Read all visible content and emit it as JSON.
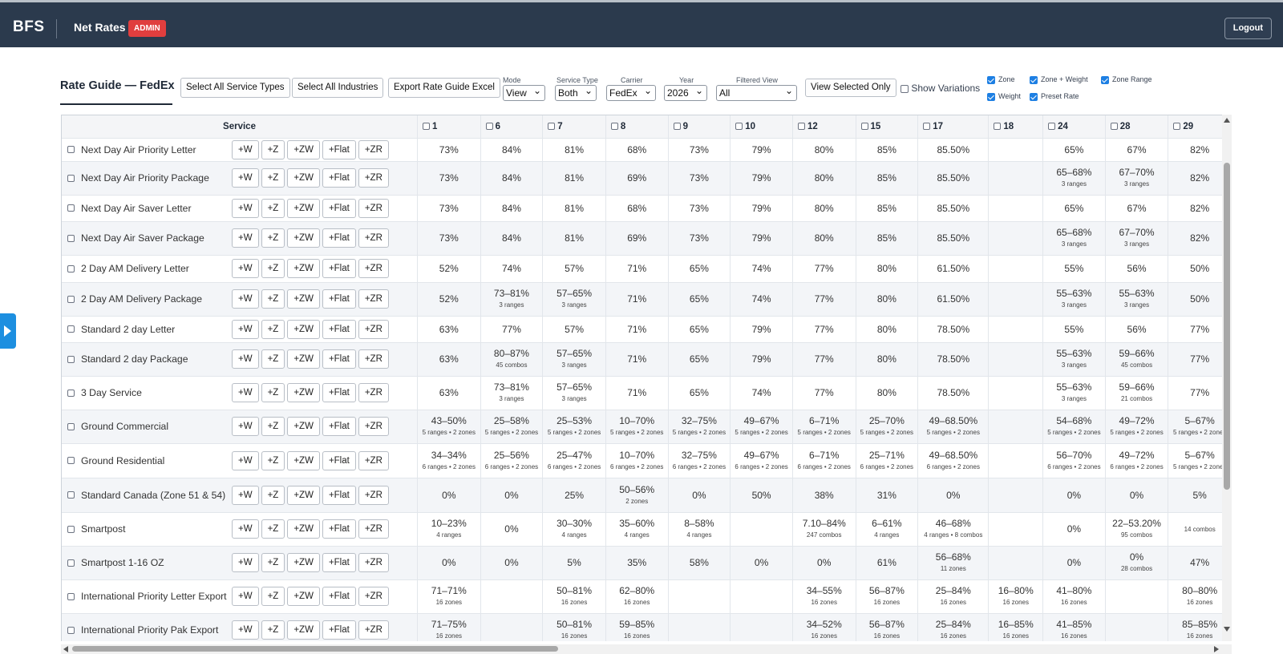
{
  "header": {
    "brand": "BFS",
    "title": "Net Rates",
    "badge": "ADMIN",
    "logout_label": "Logout"
  },
  "toolbar": {
    "title": "Rate Guide — FedEx",
    "select_all_services": "Select All Service Types",
    "select_all_industries": "Select All Industries",
    "export": "Export Rate Guide Excel",
    "mode_label": "Mode",
    "mode_value": "View",
    "service_type_label": "Service Type",
    "service_type_value": "Both",
    "carrier_label": "Carrier",
    "carrier_value": "FedEx",
    "year_label": "Year",
    "year_value": "2026",
    "filtered_view_label": "Filtered View",
    "filtered_view_value": "All",
    "view_selected": "View Selected Only",
    "show_variations": "Show Variations",
    "filters": [
      {
        "label": "Zone",
        "checked": true
      },
      {
        "label": "Zone + Weight",
        "checked": true
      },
      {
        "label": "Zone Range",
        "checked": true
      },
      {
        "label": "Weight",
        "checked": true
      },
      {
        "label": "Preset Rate",
        "checked": true
      }
    ]
  },
  "table": {
    "service_header": "Service",
    "row_buttons": [
      "+W",
      "+Z",
      "+ZW",
      "+Flat",
      "+ZR"
    ],
    "columns": [
      "1",
      "6",
      "7",
      "8",
      "9",
      "10",
      "12",
      "15",
      "17",
      "18",
      "24",
      "28",
      "29"
    ],
    "rows": [
      {
        "service": "Next Day Air Priority Letter",
        "cells": [
          [
            "73%",
            ""
          ],
          [
            "84%",
            ""
          ],
          [
            "81%",
            ""
          ],
          [
            "68%",
            ""
          ],
          [
            "73%",
            ""
          ],
          [
            "79%",
            ""
          ],
          [
            "80%",
            ""
          ],
          [
            "85%",
            ""
          ],
          [
            "85.50%",
            ""
          ],
          [
            "",
            ""
          ],
          [
            "65%",
            ""
          ],
          [
            "67%",
            ""
          ],
          [
            "82%",
            ""
          ]
        ]
      },
      {
        "service": "Next Day Air Priority Package",
        "cells": [
          [
            "73%",
            ""
          ],
          [
            "84%",
            ""
          ],
          [
            "81%",
            ""
          ],
          [
            "69%",
            ""
          ],
          [
            "73%",
            ""
          ],
          [
            "79%",
            ""
          ],
          [
            "80%",
            ""
          ],
          [
            "85%",
            ""
          ],
          [
            "85.50%",
            ""
          ],
          [
            "",
            ""
          ],
          [
            "65–68%",
            "3 ranges"
          ],
          [
            "67–70%",
            "3 ranges"
          ],
          [
            "82%",
            ""
          ]
        ]
      },
      {
        "service": "Next Day Air Saver Letter",
        "cells": [
          [
            "73%",
            ""
          ],
          [
            "84%",
            ""
          ],
          [
            "81%",
            ""
          ],
          [
            "68%",
            ""
          ],
          [
            "73%",
            ""
          ],
          [
            "79%",
            ""
          ],
          [
            "80%",
            ""
          ],
          [
            "85%",
            ""
          ],
          [
            "85.50%",
            ""
          ],
          [
            "",
            ""
          ],
          [
            "65%",
            ""
          ],
          [
            "67%",
            ""
          ],
          [
            "82%",
            ""
          ]
        ]
      },
      {
        "service": "Next Day Air Saver Package",
        "cells": [
          [
            "73%",
            ""
          ],
          [
            "84%",
            ""
          ],
          [
            "81%",
            ""
          ],
          [
            "69%",
            ""
          ],
          [
            "73%",
            ""
          ],
          [
            "79%",
            ""
          ],
          [
            "80%",
            ""
          ],
          [
            "85%",
            ""
          ],
          [
            "85.50%",
            ""
          ],
          [
            "",
            ""
          ],
          [
            "65–68%",
            "3 ranges"
          ],
          [
            "67–70%",
            "3 ranges"
          ],
          [
            "82%",
            ""
          ]
        ]
      },
      {
        "service": "2 Day AM Delivery Letter",
        "cells": [
          [
            "52%",
            ""
          ],
          [
            "74%",
            ""
          ],
          [
            "57%",
            ""
          ],
          [
            "71%",
            ""
          ],
          [
            "65%",
            ""
          ],
          [
            "74%",
            ""
          ],
          [
            "77%",
            ""
          ],
          [
            "80%",
            ""
          ],
          [
            "61.50%",
            ""
          ],
          [
            "",
            ""
          ],
          [
            "55%",
            ""
          ],
          [
            "56%",
            ""
          ],
          [
            "50%",
            ""
          ]
        ]
      },
      {
        "service": "2 Day AM Delivery Package",
        "cells": [
          [
            "52%",
            ""
          ],
          [
            "73–81%",
            "3 ranges"
          ],
          [
            "57–65%",
            "3 ranges"
          ],
          [
            "71%",
            ""
          ],
          [
            "65%",
            ""
          ],
          [
            "74%",
            ""
          ],
          [
            "77%",
            ""
          ],
          [
            "80%",
            ""
          ],
          [
            "61.50%",
            ""
          ],
          [
            "",
            ""
          ],
          [
            "55–63%",
            "3 ranges"
          ],
          [
            "55–63%",
            "3 ranges"
          ],
          [
            "50%",
            ""
          ]
        ]
      },
      {
        "service": "Standard 2 day Letter",
        "cells": [
          [
            "63%",
            ""
          ],
          [
            "77%",
            ""
          ],
          [
            "57%",
            ""
          ],
          [
            "71%",
            ""
          ],
          [
            "65%",
            ""
          ],
          [
            "79%",
            ""
          ],
          [
            "77%",
            ""
          ],
          [
            "80%",
            ""
          ],
          [
            "78.50%",
            ""
          ],
          [
            "",
            ""
          ],
          [
            "55%",
            ""
          ],
          [
            "56%",
            ""
          ],
          [
            "77%",
            ""
          ]
        ]
      },
      {
        "service": "Standard 2 day Package",
        "cells": [
          [
            "63%",
            ""
          ],
          [
            "80–87%",
            "45 combos"
          ],
          [
            "57–65%",
            "3 ranges"
          ],
          [
            "71%",
            ""
          ],
          [
            "65%",
            ""
          ],
          [
            "79%",
            ""
          ],
          [
            "77%",
            ""
          ],
          [
            "80%",
            ""
          ],
          [
            "78.50%",
            ""
          ],
          [
            "",
            ""
          ],
          [
            "55–63%",
            "3 ranges"
          ],
          [
            "59–66%",
            "45 combos"
          ],
          [
            "77%",
            ""
          ]
        ]
      },
      {
        "service": "3 Day Service",
        "cells": [
          [
            "63%",
            ""
          ],
          [
            "73–81%",
            "3 ranges"
          ],
          [
            "57–65%",
            "3 ranges"
          ],
          [
            "71%",
            ""
          ],
          [
            "65%",
            ""
          ],
          [
            "74%",
            ""
          ],
          [
            "77%",
            ""
          ],
          [
            "80%",
            ""
          ],
          [
            "78.50%",
            ""
          ],
          [
            "",
            ""
          ],
          [
            "55–63%",
            "3 ranges"
          ],
          [
            "59–66%",
            "21 combos"
          ],
          [
            "77%",
            ""
          ]
        ]
      },
      {
        "service": "Ground Commercial",
        "cells": [
          [
            "43–50%",
            "5 ranges • 2 zones"
          ],
          [
            "25–58%",
            "5 ranges • 2 zones"
          ],
          [
            "25–53%",
            "5 ranges • 2 zones"
          ],
          [
            "10–70%",
            "5 ranges • 2 zones"
          ],
          [
            "32–75%",
            "5 ranges • 2 zones"
          ],
          [
            "49–67%",
            "5 ranges • 2 zones"
          ],
          [
            "6–71%",
            "5 ranges • 2 zones"
          ],
          [
            "25–70%",
            "5 ranges • 2 zones"
          ],
          [
            "49–68.50%",
            "5 ranges • 2 zones"
          ],
          [
            "",
            ""
          ],
          [
            "54–68%",
            "5 ranges • 2 zones"
          ],
          [
            "49–72%",
            "5 ranges • 2 zones"
          ],
          [
            "5–67%",
            "5 ranges • 2 zones"
          ]
        ]
      },
      {
        "service": "Ground Residential",
        "cells": [
          [
            "34–34%",
            "6 ranges • 2 zones"
          ],
          [
            "25–56%",
            "6 ranges • 2 zones"
          ],
          [
            "25–47%",
            "6 ranges • 2 zones"
          ],
          [
            "10–70%",
            "6 ranges • 2 zones"
          ],
          [
            "32–75%",
            "6 ranges • 2 zones"
          ],
          [
            "49–67%",
            "6 ranges • 2 zones"
          ],
          [
            "6–71%",
            "6 ranges • 2 zones"
          ],
          [
            "25–71%",
            "6 ranges • 2 zones"
          ],
          [
            "49–68.50%",
            "6 ranges • 2 zones"
          ],
          [
            "",
            ""
          ],
          [
            "56–70%",
            "6 ranges • 2 zones"
          ],
          [
            "49–72%",
            "6 ranges • 2 zones"
          ],
          [
            "5–67%",
            "5 ranges • 2 zones"
          ]
        ]
      },
      {
        "service": "Standard Canada (Zone 51 & 54)",
        "cells": [
          [
            "0%",
            ""
          ],
          [
            "0%",
            ""
          ],
          [
            "25%",
            ""
          ],
          [
            "50–56%",
            "2 zones"
          ],
          [
            "0%",
            ""
          ],
          [
            "50%",
            ""
          ],
          [
            "38%",
            ""
          ],
          [
            "31%",
            ""
          ],
          [
            "0%",
            ""
          ],
          [
            "",
            ""
          ],
          [
            "0%",
            ""
          ],
          [
            "0%",
            ""
          ],
          [
            "5%",
            ""
          ]
        ]
      },
      {
        "service": "Smartpost",
        "cells": [
          [
            "10–23%",
            "4 ranges"
          ],
          [
            "0%",
            ""
          ],
          [
            "30–30%",
            "4 ranges"
          ],
          [
            "35–60%",
            "4 ranges"
          ],
          [
            "8–58%",
            "4 ranges"
          ],
          [
            "",
            ""
          ],
          [
            "7.10–84%",
            "247 combos"
          ],
          [
            "6–61%",
            "4 ranges"
          ],
          [
            "46–68%",
            "4 ranges • 8 combos"
          ],
          [
            "",
            ""
          ],
          [
            "0%",
            ""
          ],
          [
            "22–53.20%",
            "95 combos"
          ],
          [
            "",
            "14 combos"
          ]
        ]
      },
      {
        "service": "Smartpost 1-16 OZ",
        "cells": [
          [
            "0%",
            ""
          ],
          [
            "0%",
            ""
          ],
          [
            "5%",
            ""
          ],
          [
            "35%",
            ""
          ],
          [
            "58%",
            ""
          ],
          [
            "0%",
            ""
          ],
          [
            "0%",
            ""
          ],
          [
            "61%",
            ""
          ],
          [
            "56–68%",
            "11 zones"
          ],
          [
            "",
            ""
          ],
          [
            "0%",
            ""
          ],
          [
            "0%",
            "28 combos"
          ],
          [
            "47%",
            ""
          ]
        ]
      },
      {
        "service": "International Priority Letter Export",
        "cells": [
          [
            "71–71%",
            "16 zones"
          ],
          [
            "",
            ""
          ],
          [
            "50–81%",
            "16 zones"
          ],
          [
            "62–80%",
            "16 zones"
          ],
          [
            "",
            ""
          ],
          [
            "",
            ""
          ],
          [
            "34–55%",
            "16 zones"
          ],
          [
            "56–87%",
            "16 zones"
          ],
          [
            "25–84%",
            "16 zones"
          ],
          [
            "16–80%",
            "16 zones"
          ],
          [
            "41–80%",
            "16 zones"
          ],
          [
            "",
            ""
          ],
          [
            "80–80%",
            "16 zones"
          ]
        ]
      },
      {
        "service": "International Priority Pak Export",
        "cells": [
          [
            "71–75%",
            "16 zones"
          ],
          [
            "",
            ""
          ],
          [
            "50–81%",
            "16 zones"
          ],
          [
            "59–85%",
            "16 zones"
          ],
          [
            "",
            ""
          ],
          [
            "",
            ""
          ],
          [
            "34–52%",
            "16 zones"
          ],
          [
            "56–87%",
            "16 zones"
          ],
          [
            "25–84%",
            "16 zones"
          ],
          [
            "16–85%",
            "16 zones"
          ],
          [
            "41–85%",
            "16 zones"
          ],
          [
            "",
            ""
          ],
          [
            "85–85%",
            "16 zones"
          ]
        ]
      }
    ]
  }
}
